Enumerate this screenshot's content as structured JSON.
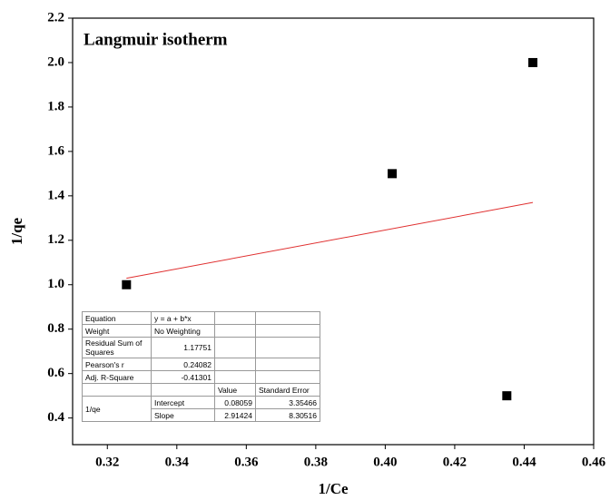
{
  "chart_data": {
    "type": "scatter",
    "title": "Langmuir isotherm",
    "x_label": "1/Ce",
    "y_label": "1/qe",
    "series": [
      {
        "color": "#000000",
        "x": [
          0.3255,
          0.402,
          0.435,
          0.4425
        ],
        "values": [
          1.0,
          1.5,
          0.5,
          2.0
        ]
      }
    ],
    "fit": {
      "color": "#e03030",
      "x": [
        0.3255,
        0.4425
      ],
      "values": [
        1.029,
        1.37
      ]
    },
    "xlim": [
      0.31,
      0.46
    ],
    "ylim": [
      0.28,
      2.2
    ],
    "xticks": [
      0.32,
      0.34,
      0.36,
      0.38,
      {
        "value": 0.4,
        "label": "0.40"
      },
      0.42,
      0.44,
      0.46
    ],
    "yticks": [
      0.4,
      0.6,
      0.8,
      {
        "value": 1,
        "label": "1.0"
      },
      1.2,
      1.4,
      1.6,
      1.8,
      {
        "value": 2,
        "label": "2.0"
      },
      2.2
    ],
    "stats_table": {
      "rows": [
        [
          "Equation",
          "y = a + b*x"
        ],
        [
          "Weight",
          "No Weighting"
        ],
        [
          "Residual Sum of Squares",
          1.17751
        ],
        [
          "Pearson's r",
          0.24082
        ],
        [
          "Adj. R-Square",
          -0.41301
        ],
        [
          "Value",
          "Standard Error"
        ],
        [
          "1/qe",
          "Intercept",
          0.08059,
          3.35466
        ],
        [
          "Slope",
          2.91424,
          8.30516
        ]
      ]
    }
  }
}
